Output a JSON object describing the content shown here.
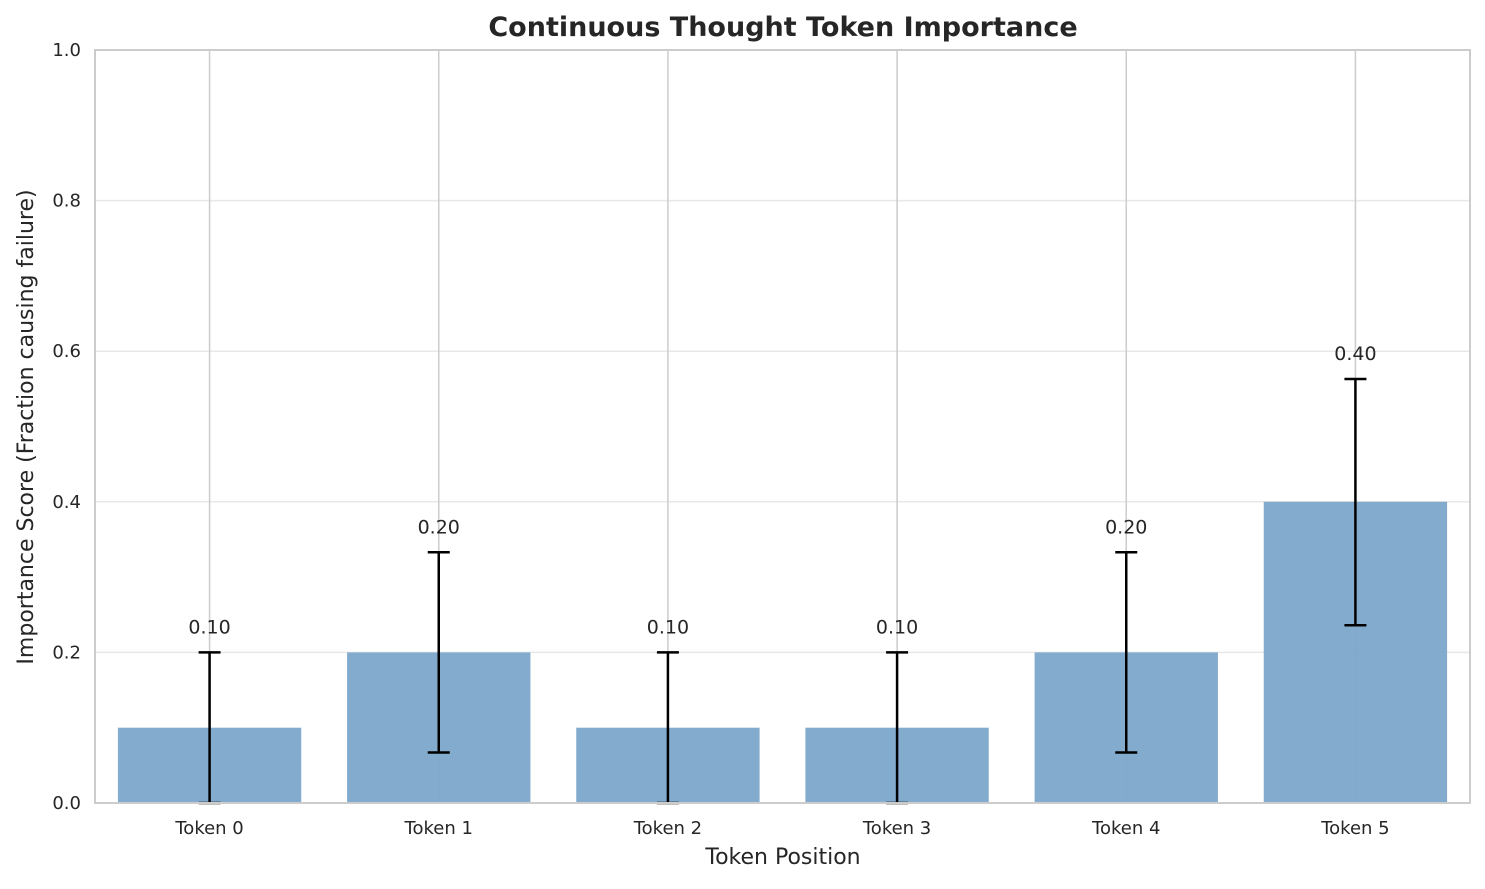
{
  "chart_data": {
    "type": "bar",
    "title": "Continuous Thought Token Importance",
    "xlabel": "Token Position",
    "ylabel": "Importance Score (Fraction causing failure)",
    "categories": [
      "Token 0",
      "Token 1",
      "Token 2",
      "Token 3",
      "Token 4",
      "Token 5"
    ],
    "values": [
      0.1,
      0.2,
      0.1,
      0.1,
      0.2,
      0.4
    ],
    "value_labels": [
      "0.10",
      "0.20",
      "0.10",
      "0.10",
      "0.20",
      "0.40"
    ],
    "error_low": [
      0.0,
      0.067,
      0.0,
      0.0,
      0.067,
      0.236
    ],
    "error_high": [
      0.2,
      0.333,
      0.2,
      0.2,
      0.333,
      0.563
    ],
    "ylim": [
      0,
      1.0
    ],
    "yticks": [
      0.0,
      0.2,
      0.4,
      0.6,
      0.8,
      1.0
    ],
    "ytick_labels": [
      "0.0",
      "0.2",
      "0.4",
      "0.6",
      "0.8",
      "1.0"
    ],
    "grid": true,
    "legend": "none",
    "colors": {
      "bar": "#7ba6ca",
      "error_bar": "#000000",
      "grid": "#e8e8e8",
      "vertical_grid": "#cccccc",
      "axes": "#cccccc",
      "text": "#262626"
    }
  }
}
